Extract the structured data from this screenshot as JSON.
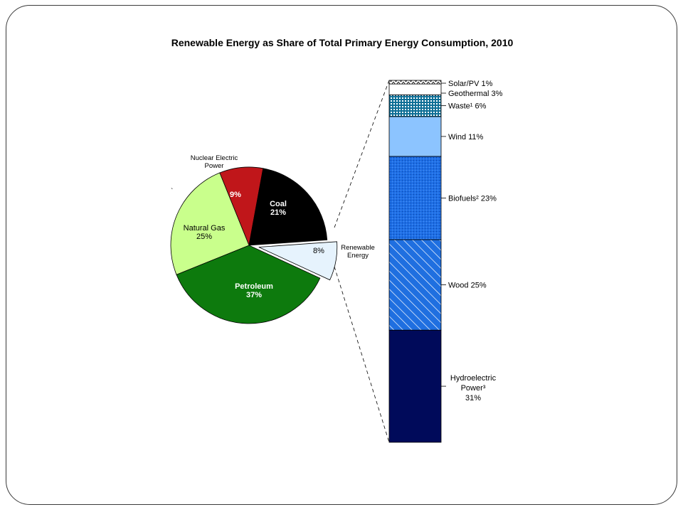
{
  "chart_data": [
    {
      "type": "pie",
      "title": "Renewable Energy as Share of Total Primary Energy Consumption, 2010",
      "slices": [
        {
          "name": "Nuclear Electric Power",
          "value": 9,
          "label": "9%",
          "color": "#c0161a"
        },
        {
          "name": "Coal",
          "value": 21,
          "label": "Coal\n21%",
          "color": "#000000"
        },
        {
          "name": "Renewable Energy",
          "value": 8,
          "label": "8%",
          "color": "#e6f3fd",
          "exploded": true
        },
        {
          "name": "Petroleum",
          "value": 37,
          "label": "Petroleum\n37%",
          "color": "#0d7a0d"
        },
        {
          "name": "Natural Gas",
          "value": 25,
          "label": "Natural Gas\n25%",
          "color": "#c9ff8c"
        }
      ],
      "outside_labels": {
        "nuclear": [
          "Nuclear Electric",
          "Power"
        ],
        "renewable": [
          "Renewable",
          "Energy"
        ]
      },
      "tick_mark": "`"
    },
    {
      "type": "bar",
      "stacked": true,
      "series": [
        {
          "name": "Hydroelectric Power",
          "value": 31,
          "label": "Hydroelectric\nPower³\n31%",
          "color": "#000a5a",
          "pattern": "solid"
        },
        {
          "name": "Wood",
          "value": 25,
          "label": "Wood 25%",
          "color": "#1f6fe0",
          "pattern": "diagonal"
        },
        {
          "name": "Biofuels",
          "value": 23,
          "label": "Biofuels² 23%",
          "color": "#1e6fe6",
          "pattern": "dots"
        },
        {
          "name": "Wind",
          "value": 11,
          "label": "Wind 11%",
          "color": "#8cc4ff",
          "pattern": "solid"
        },
        {
          "name": "Waste",
          "value": 6,
          "label": "Waste¹ 6%",
          "color": "#0f7fa8",
          "pattern": "grid"
        },
        {
          "name": "Geothermal",
          "value": 3,
          "label": "Geothermal 3%",
          "color": "#ffffff",
          "pattern": "solid"
        },
        {
          "name": "Solar/PV",
          "value": 1,
          "label": "Solar/PV 1%",
          "color": "#ffffff",
          "pattern": "zigzag"
        }
      ]
    }
  ]
}
